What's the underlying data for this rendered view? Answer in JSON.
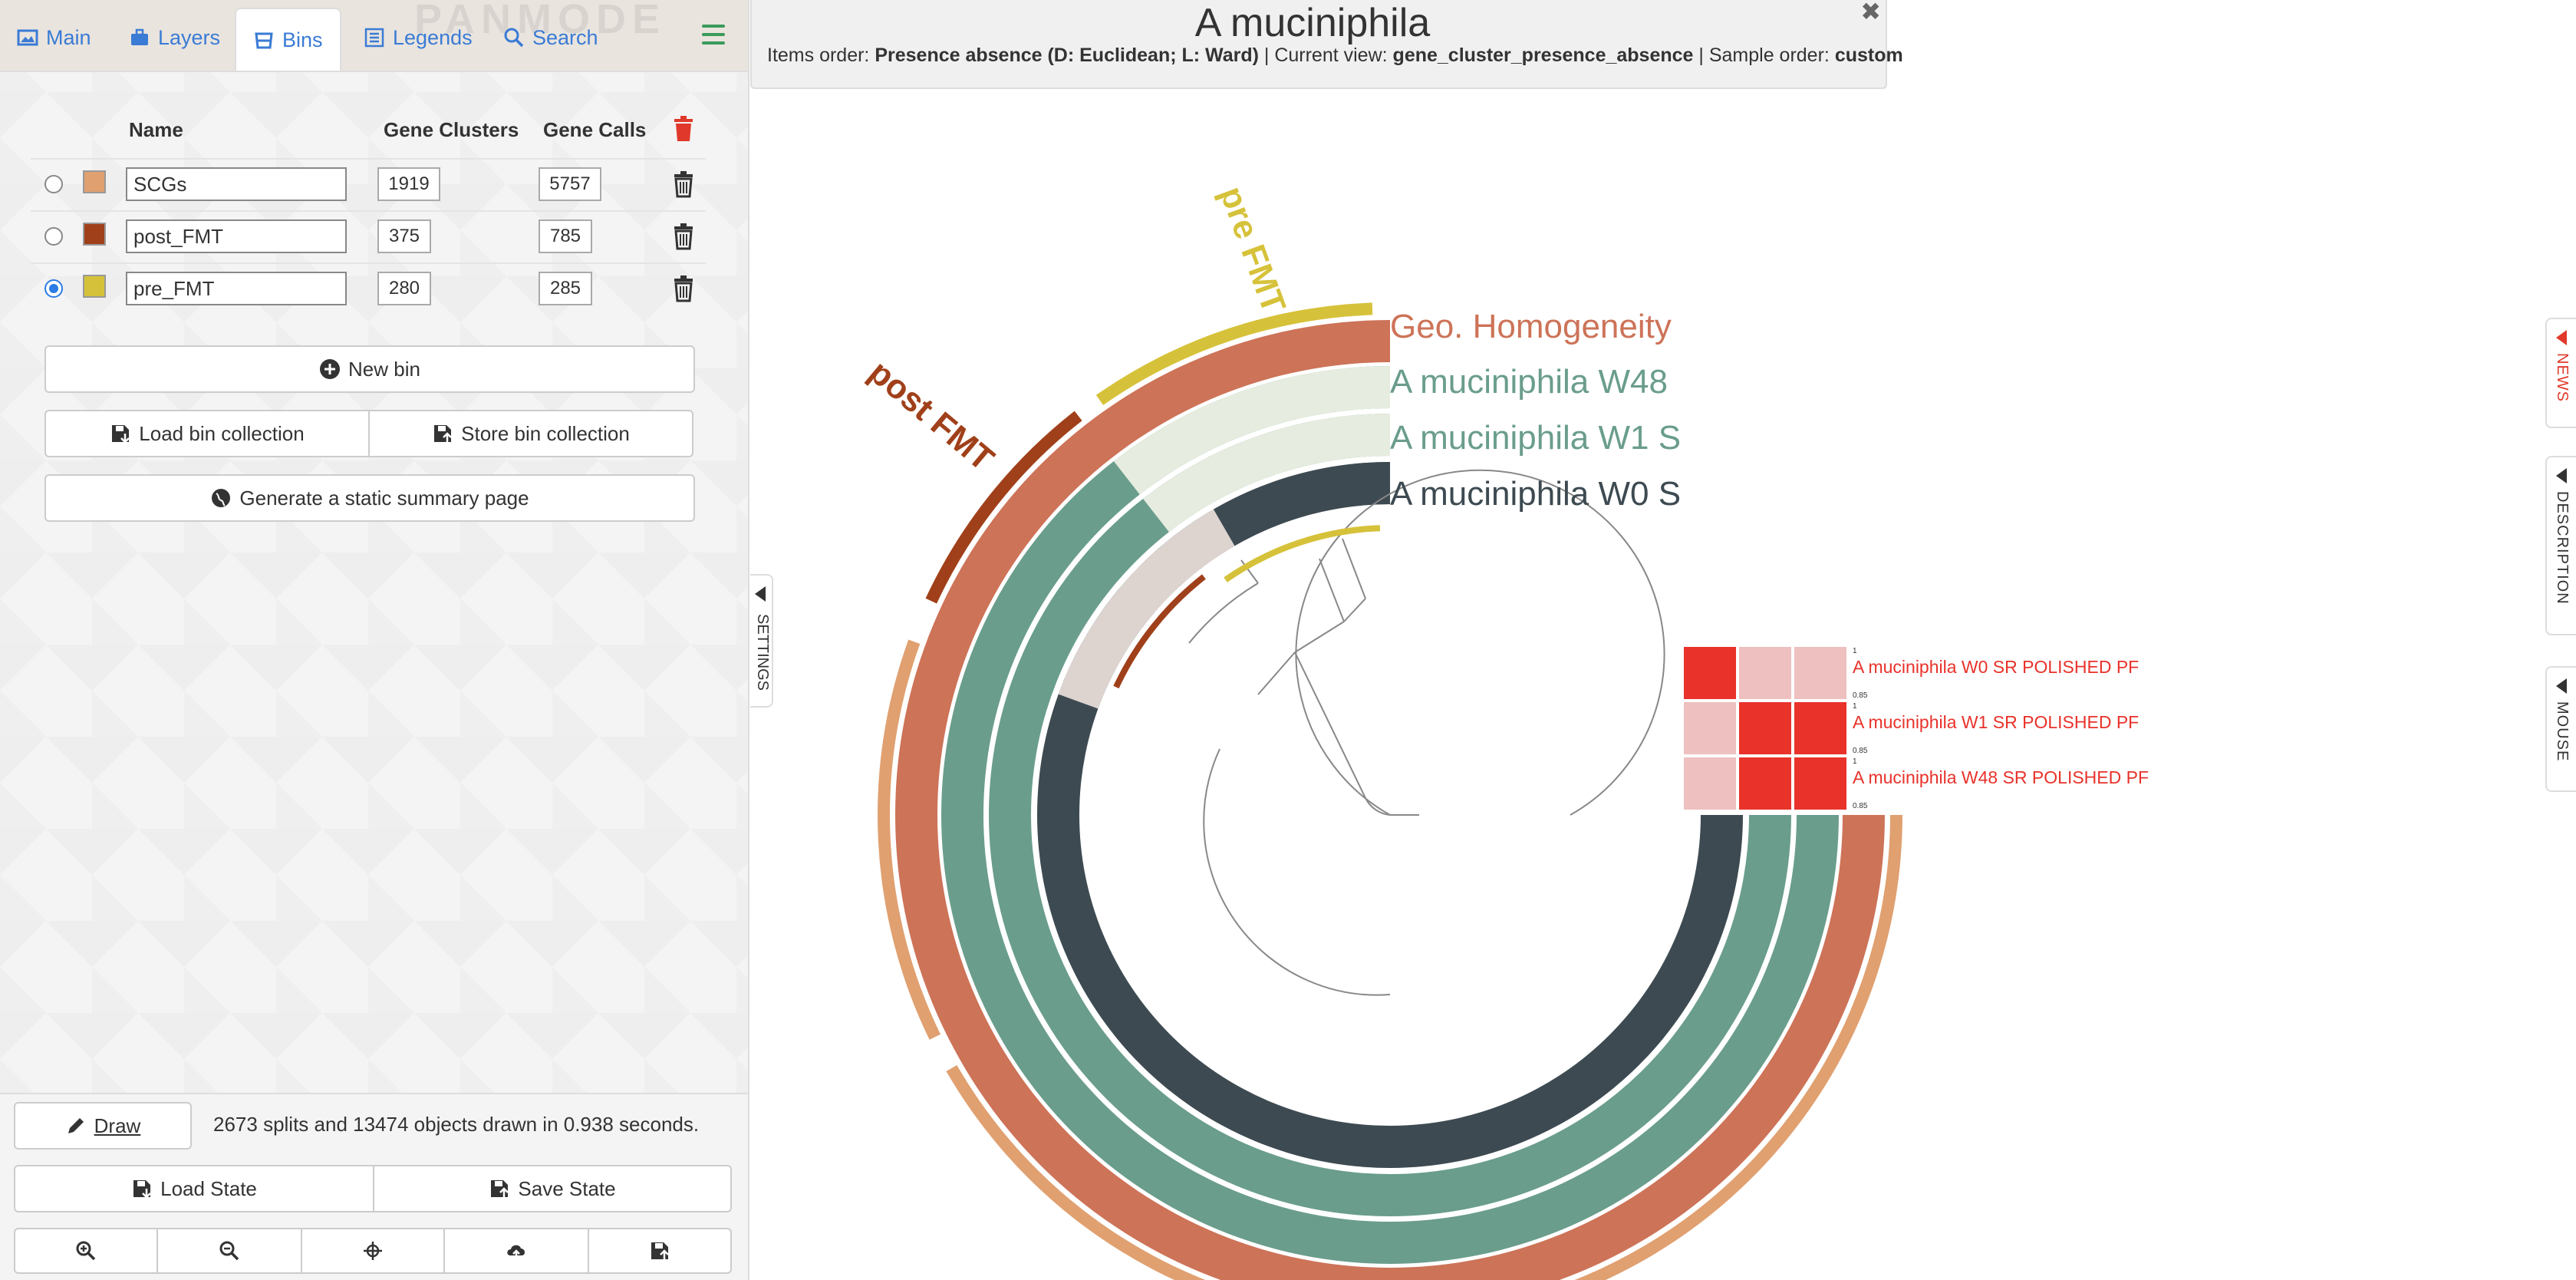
{
  "tabs": [
    {
      "label": "Main",
      "icon": "image-icon"
    },
    {
      "label": "Layers",
      "icon": "briefcase-icon"
    },
    {
      "label": "Bins",
      "icon": "bin-icon"
    },
    {
      "label": "Legends",
      "icon": "list-icon"
    },
    {
      "label": "Search",
      "icon": "search-icon"
    }
  ],
  "watermark": "PANMODE",
  "bins": {
    "headers": {
      "name": "Name",
      "gene_clusters": "Gene Clusters",
      "gene_calls": "Gene Calls"
    },
    "rows": [
      {
        "name": "SCGs",
        "color": "#e0a070",
        "gene_clusters": "1919",
        "gene_calls": "5757",
        "selected": false
      },
      {
        "name": "post_FMT",
        "color": "#a0401a",
        "gene_clusters": "375",
        "gene_calls": "785",
        "selected": false
      },
      {
        "name": "pre_FMT",
        "color": "#d6c23a",
        "gene_clusters": "280",
        "gene_calls": "285",
        "selected": true
      }
    ],
    "new_bin": "New bin",
    "load_collection": "Load bin collection",
    "store_collection": "Store bin collection",
    "summary": "Generate a static summary page"
  },
  "bottom": {
    "draw": "Draw",
    "status": "2673 splits and 13474 objects drawn in 0.938 seconds.",
    "load_state": "Load State",
    "save_state": "Save State"
  },
  "title": {
    "name": "A muciniphila",
    "items_order_label": "Items order: ",
    "items_order": "Presence absence (D: Euclidean; L: Ward)",
    "view_label": " | Current view: ",
    "view": "gene_cluster_presence_absence",
    "sample_label": " | Sample order: ",
    "sample": "custom"
  },
  "settings_label": "SETTINGS",
  "side_tabs": [
    "NEWS",
    "DESCRIPTION",
    "MOUSE"
  ],
  "visual": {
    "layer_labels": [
      "Geo. Homogeneity",
      "A muciniphila W48",
      "A muciniphila W1 S",
      "A muciniphila W0 S"
    ],
    "bin_labels": [
      "pre FMT",
      "post FMT"
    ],
    "heatmap_rows": [
      "A muciniphila W0 SR POLISHED PF",
      "A muciniphila W1 SR POLISHED PF",
      "A muciniphila W48 SR POLISHED PF"
    ],
    "heatmap_max": "1",
    "heatmap_min": "0.85",
    "colors": {
      "geo": "#cd7358",
      "w48": "#6a9d8c",
      "w1": "#6a9d8c",
      "w0": "#3d4a51",
      "scgs": "#e0a070",
      "post": "#a0401a",
      "pre": "#d6c23a",
      "heat_high": "#e8322a",
      "heat_low": "#eec0c0"
    }
  }
}
